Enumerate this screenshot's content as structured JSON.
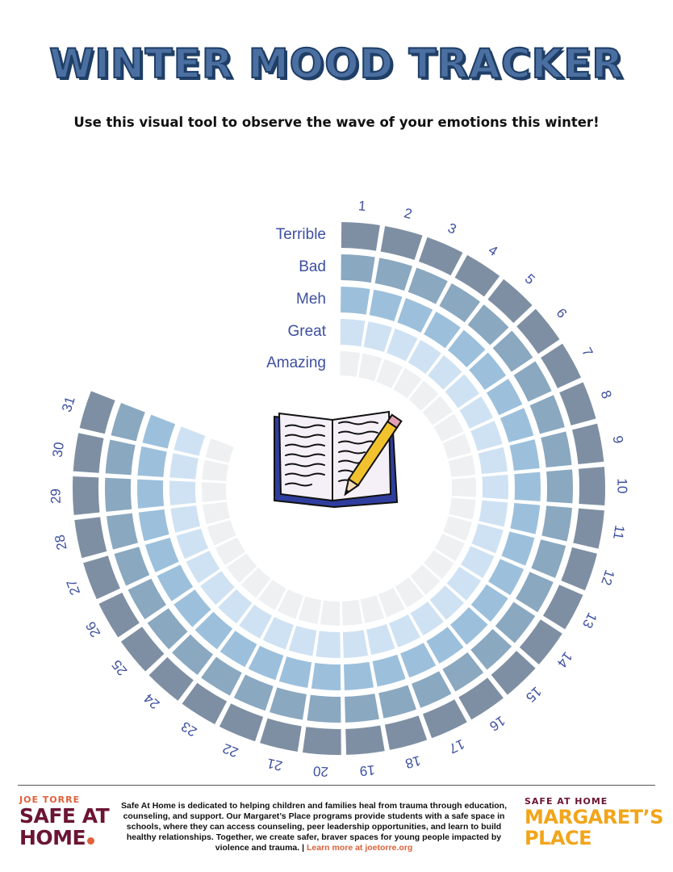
{
  "header": {
    "title": "WINTER MOOD TRACKER",
    "subtitle": "Use this  visual tool to observe the wave of your emotions this winter!"
  },
  "tracker": {
    "days": [
      "1",
      "2",
      "3",
      "4",
      "5",
      "6",
      "7",
      "8",
      "9",
      "10",
      "11",
      "12",
      "13",
      "14",
      "15",
      "16",
      "17",
      "18",
      "19",
      "20",
      "21",
      "22",
      "23",
      "24",
      "25",
      "26",
      "27",
      "28",
      "29",
      "30",
      "31"
    ],
    "moods": [
      {
        "label": "Terrible",
        "color": "#7f8fa3"
      },
      {
        "label": "Bad",
        "color": "#8aa8c0"
      },
      {
        "label": "Meh",
        "color": "#9cc0dc"
      },
      {
        "label": "Great",
        "color": "#cfe2f3"
      },
      {
        "label": "Amazing",
        "color": "#eff0f2"
      }
    ],
    "center_icon": "notebook-pencil-icon"
  },
  "footer": {
    "left_logo": {
      "line1": "JOE TORRE",
      "line2": "SAFE AT",
      "line3": "HOME"
    },
    "text": "Safe At Home is dedicated to helping children and families heal from trauma through education, counseling, and support. Our Margaret’s Place programs provide students with a safe space in schools, where they can access counseling, peer leadership opportunities, and learn to build healthy relationships. Together, we create safer, braver spaces for young people impacted by violence and trauma.",
    "separator": "|",
    "link": "Learn more at joetorre.org",
    "right_logo": {
      "line1": "SAFE AT HOME",
      "line2": "MARGARET’S",
      "line3": "PLACE"
    }
  }
}
